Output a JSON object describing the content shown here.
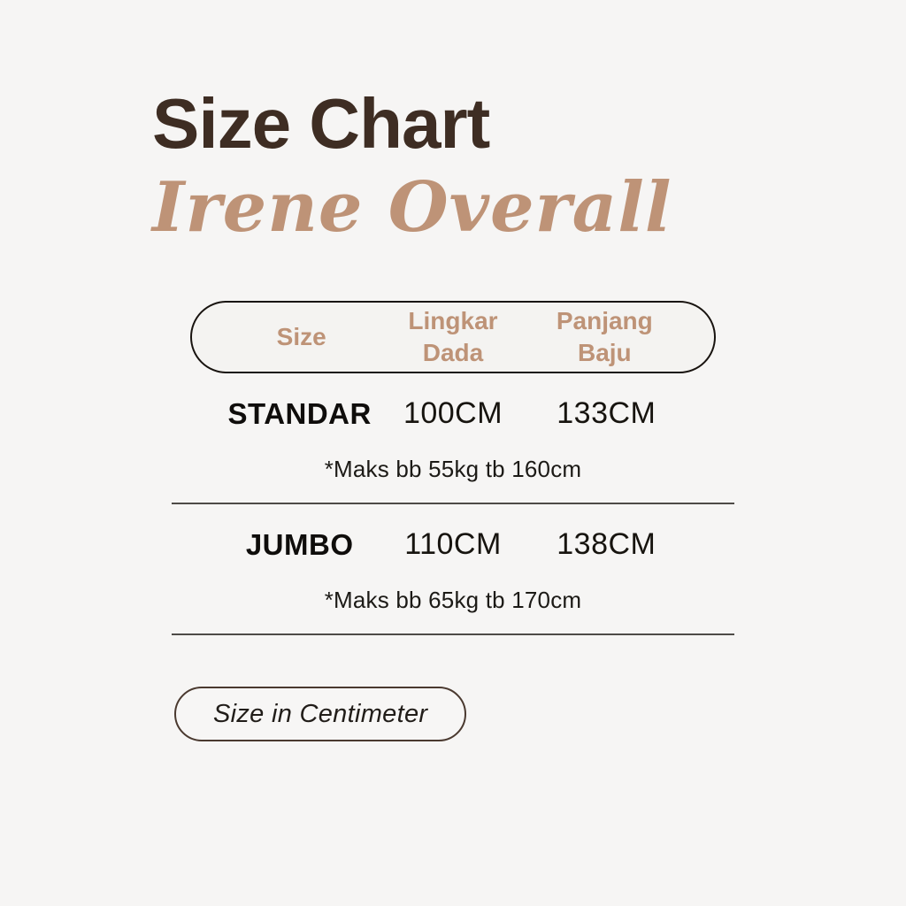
{
  "header": {
    "title": "Size Chart",
    "subtitle": "Irene Overall"
  },
  "table": {
    "columns": [
      "Size",
      "Lingkar Dada",
      "Panjang Baju"
    ],
    "rows": [
      {
        "size": "STANDAR",
        "lingkar_dada": "100CM",
        "panjang_baju": "133CM",
        "note": "*Maks bb 55kg tb 160cm"
      },
      {
        "size": "JUMBO",
        "lingkar_dada": "110CM",
        "panjang_baju": "138CM",
        "note": "*Maks bb 65kg tb 170cm"
      }
    ]
  },
  "footer": {
    "badge": "Size in Centimeter"
  },
  "colors": {
    "background": "#F6F5F4",
    "title_brown": "#3E2D23",
    "accent_tan": "#BE9377",
    "text_black": "#17140F",
    "divider_gray": "#4E4B47",
    "pill_border_dark": "#18130F",
    "badge_border_brown": "#4A392F",
    "pill_bg": "#F4F3F1"
  }
}
